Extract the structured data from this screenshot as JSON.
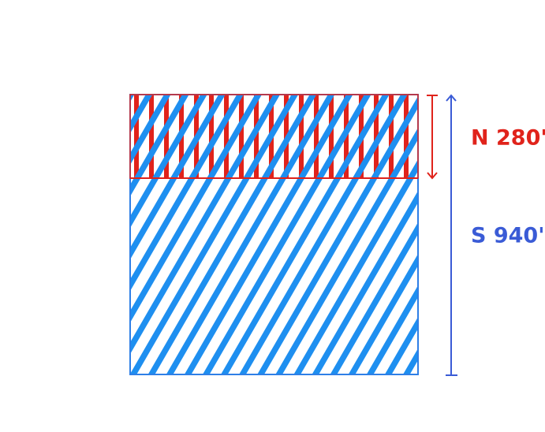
{
  "sections": [
    {
      "label": "N 280'"
    },
    {
      "label": "S 940'"
    }
  ]
}
